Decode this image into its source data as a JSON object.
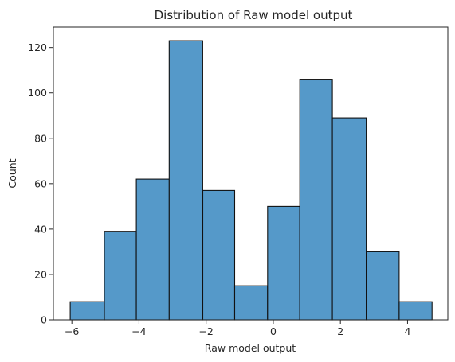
{
  "chart_data": {
    "type": "bar",
    "title": "Distribution of Raw model output",
    "xlabel": "Raw model output",
    "ylabel": "Count",
    "bin_edges": [
      -6.05,
      -5.03,
      -4.08,
      -3.1,
      -2.1,
      -1.15,
      -0.17,
      0.79,
      1.76,
      2.77,
      3.75,
      4.73
    ],
    "values": [
      8,
      39,
      62,
      123,
      57,
      15,
      50,
      106,
      89,
      30,
      8
    ],
    "xlim": [
      -6.55,
      5.2
    ],
    "ylim": [
      0,
      129
    ],
    "xticks": [
      -6,
      -4,
      -2,
      0,
      2,
      4
    ],
    "xtick_labels": [
      "−6",
      "−4",
      "−2",
      "0",
      "2",
      "4"
    ],
    "yticks": [
      0,
      20,
      40,
      60,
      80,
      100,
      120
    ],
    "ytick_labels": [
      "0",
      "20",
      "40",
      "60",
      "80",
      "100",
      "120"
    ],
    "grid": false,
    "bar_color": "#5599c9",
    "edge_color": "#111111"
  }
}
